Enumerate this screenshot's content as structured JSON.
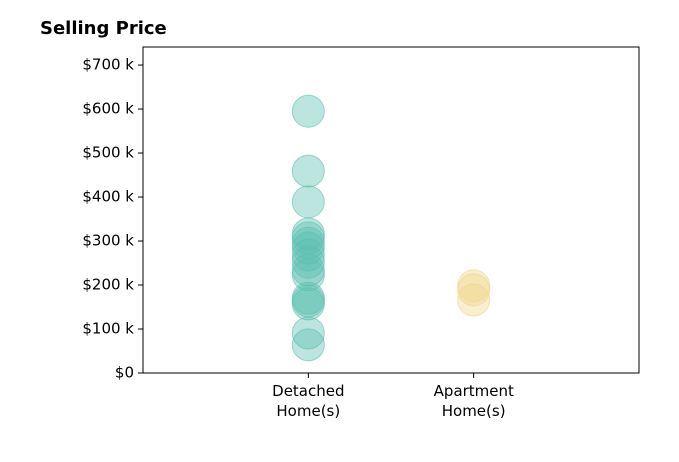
{
  "chart_data": {
    "type": "strip",
    "title": "Selling Price",
    "categories": [
      "Detached Home(s)",
      "Apartment Home(s)"
    ],
    "values": [
      [
        595000,
        459000,
        389000,
        316000,
        307000,
        295000,
        284000,
        268000,
        252000,
        234000,
        223000,
        170000,
        164000,
        157000,
        91000,
        64000
      ],
      [
        198000,
        189000,
        166000
      ]
    ],
    "colors": [
      "#5bbfb0",
      "#f0d48a"
    ],
    "ylim": [
      0,
      741000
    ],
    "yticks": [
      {
        "value": 0,
        "label": "$0"
      },
      {
        "value": 100000,
        "label": "$100 k"
      },
      {
        "value": 200000,
        "label": "$200 k"
      },
      {
        "value": 300000,
        "label": "$300 k"
      },
      {
        "value": 400000,
        "label": "$400 k"
      },
      {
        "value": 500000,
        "label": "$500 k"
      },
      {
        "value": 600000,
        "label": "$600 k"
      },
      {
        "value": 700000,
        "label": "$700 k"
      }
    ]
  }
}
